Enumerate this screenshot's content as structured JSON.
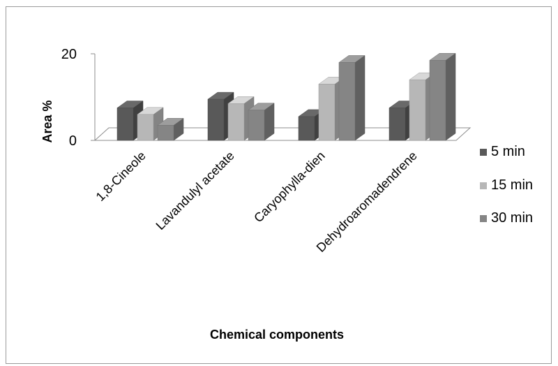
{
  "chart_data": {
    "type": "bar",
    "title": "",
    "xlabel": "Chemical components",
    "ylabel": "Area %",
    "ylim": [
      0,
      20
    ],
    "yticks": [
      "0",
      "20"
    ],
    "categories": [
      "1,8-Cineole",
      "Lavandulyl acetate",
      "Caryophylla-dien",
      "Dehydroaromadendrene"
    ],
    "series": [
      {
        "name": "5 min",
        "values": [
          7.5,
          9.5,
          5.5,
          7.5
        ],
        "color": "#595959"
      },
      {
        "name": "15 min",
        "values": [
          6,
          8.5,
          13,
          14
        ],
        "color": "#b7b7b7"
      },
      {
        "name": "30 min",
        "values": [
          3.5,
          7,
          18,
          18.5
        ],
        "color": "#858585"
      }
    ],
    "grid": false,
    "legend_position": "right"
  }
}
